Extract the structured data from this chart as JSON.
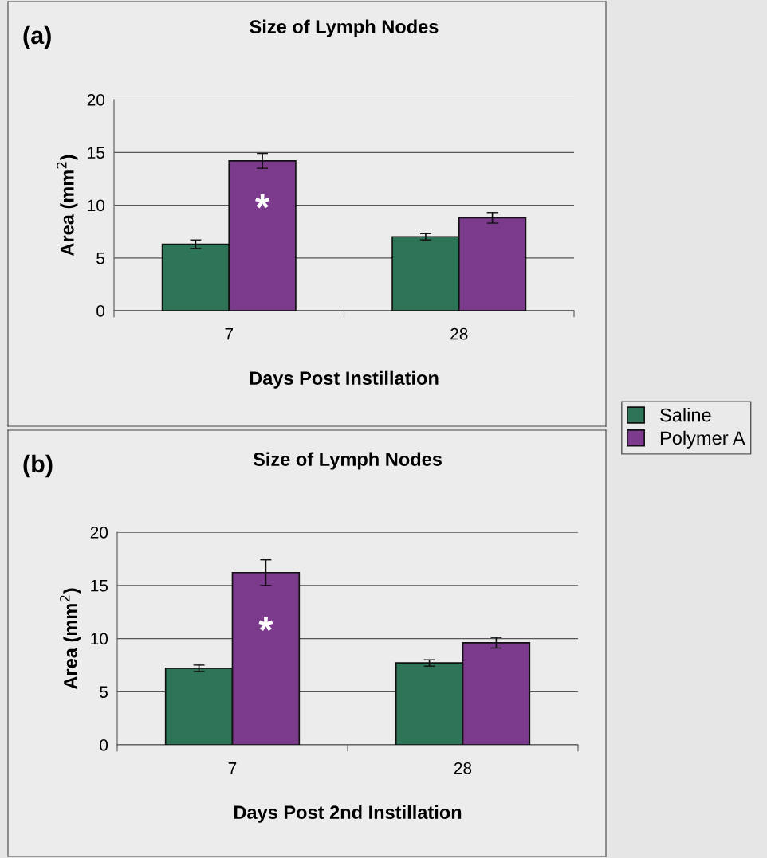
{
  "chart_data": [
    {
      "type": "bar",
      "title": "Size of Lymph Nodes",
      "xlabel": "Days Post Instillation",
      "ylabel": "Area (mm$^{2}$)",
      "categories": [
        "7",
        "28"
      ],
      "series": [
        {
          "name": "Saline",
          "color": "#2e7558",
          "values": [
            6.3,
            7.0
          ],
          "errors": [
            0.4,
            0.3
          ]
        },
        {
          "name": "Polymer A",
          "color": "#7b3a8c",
          "values": [
            14.2,
            8.8
          ],
          "errors": [
            0.7,
            0.5
          ]
        }
      ],
      "ylim": [
        0,
        20
      ],
      "yticks": [
        0,
        5,
        10,
        15,
        20
      ],
      "grid": "y",
      "legend": "right",
      "annotations": [
        "(a)",
        {
          "text": "*",
          "x": "7",
          "y": 9.5
        }
      ]
    },
    {
      "type": "bar",
      "title": "Size of Lymph Nodes",
      "xlabel": "Days Post 2nd Instillation",
      "ylabel": "Area (mm$^{2}$)",
      "categories": [
        "7",
        "28"
      ],
      "series": [
        {
          "color": "#2e7558",
          "values": [
            7.2,
            7.7
          ],
          "errors": [
            0.3,
            0.3
          ]
        },
        {
          "color": "#7b3a8c",
          "values": [
            16.2,
            9.6
          ],
          "errors": [
            1.2,
            0.5
          ]
        }
      ],
      "ylim": [
        0,
        20
      ],
      "yticks": [
        0,
        5,
        10,
        15,
        20
      ],
      "grid": "y",
      "annotations": [
        "(b)",
        {
          "text": "*",
          "x": "7",
          "y": 10.5
        }
      ]
    }
  ]
}
